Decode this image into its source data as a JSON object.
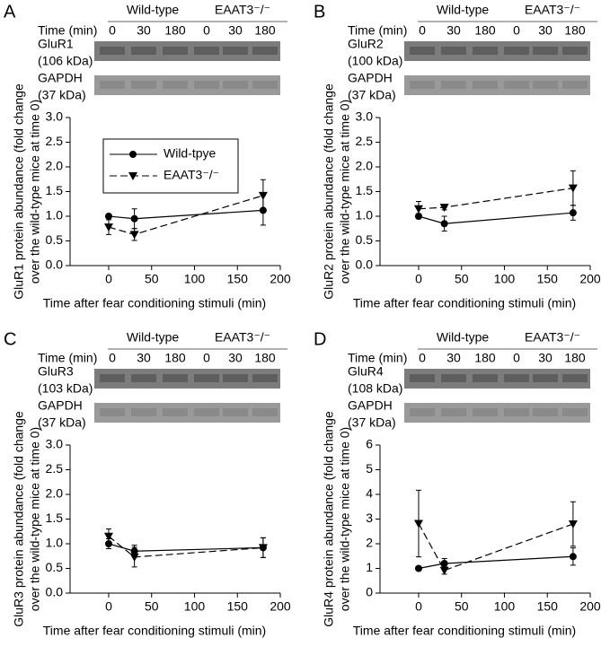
{
  "chart_data": [
    {
      "type": "line",
      "panel": "A",
      "blot": {
        "groups": [
          "Wild-type",
          "EAAT3⁻/⁻"
        ],
        "time_label": "Time (min)",
        "times": [
          "0",
          "30",
          "180",
          "0",
          "30",
          "180"
        ],
        "rows": [
          [
            "GluR1",
            "(106 kDa)"
          ],
          [
            "GAPDH",
            "(37 kDa)"
          ]
        ]
      },
      "ylabel": [
        "GluR1 protein abundance (fold change",
        "over the wild-type mice at time 0)"
      ],
      "xlabel": "Time after fear conditioning stimuli (min)",
      "x": [
        0,
        30,
        180
      ],
      "xlim": [
        -45,
        200
      ],
      "xticks": [
        0,
        50,
        100,
        150,
        200
      ],
      "ylim": [
        0,
        3
      ],
      "yticks": [
        {
          "value": 0,
          "label": "0.0"
        },
        0.5,
        {
          "value": 1,
          "label": "1.0"
        },
        1.5,
        {
          "value": 2,
          "label": "2.0"
        },
        2.5,
        {
          "value": 3,
          "label": "3.0"
        }
      ],
      "legend": "upper left",
      "series": [
        {
          "name": "Wild-tpye",
          "color": "#000",
          "marker": "circle",
          "dash": false,
          "values": [
            1.0,
            0.95,
            1.12
          ],
          "errors": [
            0.03,
            0.2,
            0.3
          ]
        },
        {
          "name": "EAAT3⁻/⁻",
          "color": "#000",
          "marker": "triangle-down",
          "dash": true,
          "values": [
            0.78,
            0.63,
            1.42
          ],
          "errors": [
            0.15,
            0.12,
            0.32
          ]
        }
      ]
    },
    {
      "type": "line",
      "panel": "B",
      "blot": {
        "groups": [
          "Wild-type",
          "EAAT3⁻/⁻"
        ],
        "time_label": "Time (min)",
        "times": [
          "0",
          "30",
          "180",
          "0",
          "30",
          "180"
        ],
        "rows": [
          [
            "GluR2",
            "(100 kDa)"
          ],
          [
            "GAPDH",
            "(37 kDa)"
          ]
        ]
      },
      "ylabel": [
        "GluR2 protein abundance (fold change",
        "over the wild-type mice at time 0)"
      ],
      "xlabel": "Time after fear conditioning stimuli (min)",
      "x": [
        0,
        30,
        180
      ],
      "xlim": [
        -45,
        200
      ],
      "xticks": [
        0,
        50,
        100,
        150,
        200
      ],
      "ylim": [
        0,
        3
      ],
      "yticks": [
        {
          "value": 0,
          "label": "0.0"
        },
        0.5,
        {
          "value": 1,
          "label": "1.0"
        },
        1.5,
        {
          "value": 2,
          "label": "2.0"
        },
        2.5,
        {
          "value": 3,
          "label": "3.0"
        }
      ],
      "series": [
        {
          "color": "#000",
          "marker": "circle",
          "dash": false,
          "values": [
            1.0,
            0.85,
            1.07
          ],
          "errors": [
            0.05,
            0.15,
            0.15
          ]
        },
        {
          "color": "#000",
          "marker": "triangle-down",
          "dash": true,
          "values": [
            1.15,
            1.18,
            1.57
          ],
          "errors": [
            0.15,
            0.05,
            0.35
          ]
        }
      ]
    },
    {
      "type": "line",
      "panel": "C",
      "blot": {
        "groups": [
          "Wild-type",
          "EAAT3⁻/⁻"
        ],
        "time_label": "Time (min)",
        "times": [
          "0",
          "30",
          "180",
          "0",
          "30",
          "180"
        ],
        "rows": [
          [
            "GluR3",
            "(103 kDa)"
          ],
          [
            "GAPDH",
            "(37 kDa)"
          ]
        ]
      },
      "ylabel": [
        "GluR3 protein abundance (fold change",
        "over the wild-type mice at time 0)"
      ],
      "xlabel": "Time after fear conditioning stimuli (min)",
      "x": [
        0,
        30,
        180
      ],
      "xlim": [
        -45,
        200
      ],
      "xticks": [
        0,
        50,
        100,
        150,
        200
      ],
      "ylim": [
        0,
        3
      ],
      "yticks": [
        {
          "value": 0,
          "label": "0.0"
        },
        0.5,
        {
          "value": 1,
          "label": "1.0"
        },
        1.5,
        {
          "value": 2,
          "label": "2.0"
        },
        2.5,
        {
          "value": 3,
          "label": "3.0"
        }
      ],
      "series": [
        {
          "color": "#000",
          "marker": "circle",
          "dash": false,
          "values": [
            1.0,
            0.85,
            0.92
          ],
          "errors": [
            0.1,
            0.12,
            0.2
          ]
        },
        {
          "color": "#000",
          "marker": "triangle-down",
          "dash": true,
          "values": [
            1.15,
            0.73,
            0.92
          ],
          "errors": [
            0.15,
            0.2,
            0.2
          ]
        }
      ]
    },
    {
      "type": "line",
      "panel": "D",
      "blot": {
        "groups": [
          "Wild-type",
          "EAAT3⁻/⁻"
        ],
        "time_label": "Time (min)",
        "times": [
          "0",
          "30",
          "180",
          "0",
          "30",
          "180"
        ],
        "rows": [
          [
            "GluR4",
            "(108 kDa)"
          ],
          [
            "GAPDH",
            "(37 kDa)"
          ]
        ]
      },
      "ylabel": [
        "GluR4 protein abundance (fold change",
        "over the wild-type mice at time 0)"
      ],
      "xlabel": "Time after fear conditioning stimuli (min)",
      "x": [
        0,
        30,
        180
      ],
      "xlim": [
        -45,
        200
      ],
      "xticks": [
        0,
        50,
        100,
        150,
        200
      ],
      "ylim": [
        0,
        6
      ],
      "yticks": [
        0,
        1,
        2,
        3,
        4,
        5,
        6
      ],
      "series": [
        {
          "color": "#000",
          "marker": "circle",
          "dash": false,
          "values": [
            1.0,
            1.2,
            1.48
          ],
          "errors": [
            0.05,
            0.2,
            0.35
          ]
        },
        {
          "color": "#000",
          "marker": "triangle-down",
          "dash": true,
          "values": [
            2.82,
            0.92,
            2.8
          ],
          "errors": [
            1.35,
            0.15,
            0.9
          ]
        }
      ]
    }
  ]
}
